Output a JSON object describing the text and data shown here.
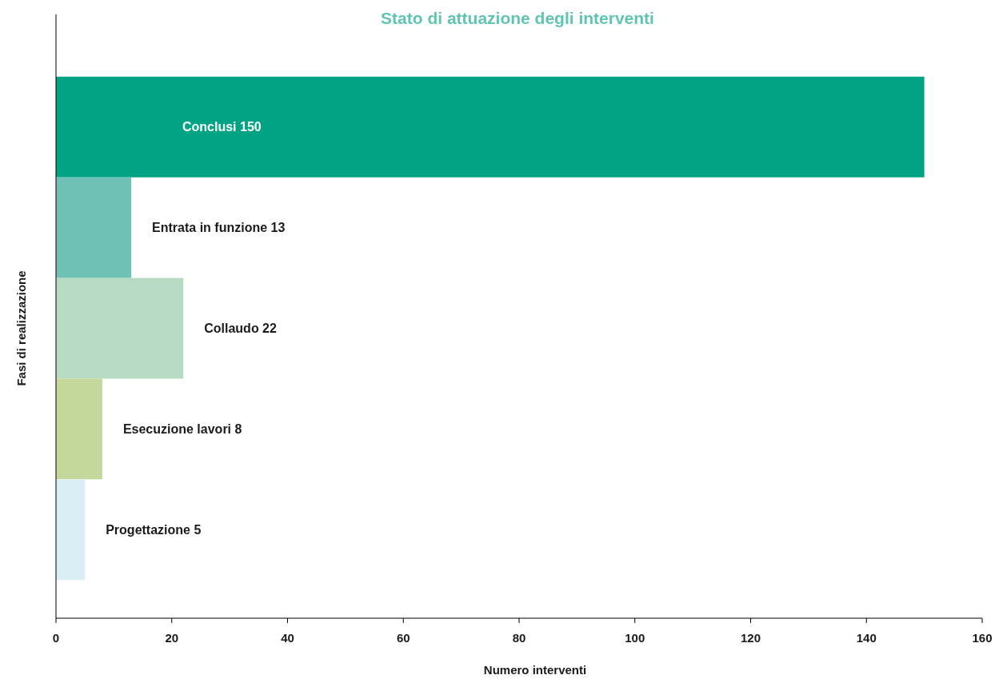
{
  "chart_data": {
    "type": "bar",
    "orientation": "horizontal",
    "title": "Stato di attuazione degli interventi",
    "xlabel": "Numero interventi",
    "ylabel": "Fasi di realizzazione",
    "categories": [
      "Conclusi 150",
      "Entrata in funzione 13",
      "Collaudo 22",
      "Esecuzione lavori 8",
      "Progettazione 5"
    ],
    "values": [
      150,
      13,
      22,
      8,
      5
    ],
    "colors": [
      "#00a383",
      "#6fc0b5",
      "#b6dbc2",
      "#c5d89c",
      "#daeef5"
    ],
    "xlim": [
      0,
      160
    ],
    "xticks": [
      0,
      20,
      40,
      60,
      80,
      100,
      120,
      140,
      160
    ],
    "grid": false
  }
}
